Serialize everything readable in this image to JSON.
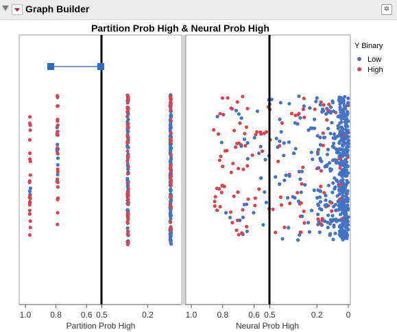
{
  "window": {
    "title": "Graph Builder"
  },
  "icons": {
    "collapse": "disclosure-triangle-icon",
    "menu": "red-triangle-menu-icon",
    "pin": "pin-icon"
  },
  "chart_data": {
    "type": "scatter",
    "title": "Partition Prob High & Neural Prob High",
    "legend": {
      "title": "Y Binary",
      "position": "right",
      "entries": [
        {
          "name": "Low",
          "color": "#4472c4"
        },
        {
          "name": "High",
          "color": "#d9434f"
        }
      ]
    },
    "panels": [
      {
        "xlabel": "Partition Prob High",
        "xlim": [
          1.0,
          0.0
        ],
        "ticks": [
          "1.0",
          "0.8",
          "0.6",
          "0.5",
          "0.2"
        ],
        "tick_values": [
          1.0,
          0.8,
          0.6,
          0.5,
          0.2
        ],
        "reference_line": 0.5,
        "threshold_marker": {
          "x": [
            0.8,
            0.5
          ]
        },
        "columns": [
          {
            "x": 0.97,
            "n_low": 3,
            "n_high": 24
          },
          {
            "x": 0.79,
            "n_low": 14,
            "n_high": 21
          },
          {
            "x": 0.33,
            "n_low": 90,
            "n_high": 45
          },
          {
            "x": 0.05,
            "n_low": 160,
            "n_high": 30
          }
        ]
      },
      {
        "xlabel": "Neural Prob High",
        "xlim": [
          1.0,
          0.0
        ],
        "ticks": [
          "1.0",
          "0.8",
          "0.6",
          "0.5",
          "0.2",
          "0"
        ],
        "tick_values": [
          1.0,
          0.8,
          0.6,
          0.5,
          0.2,
          0.0
        ],
        "reference_line": 0.5
      }
    ]
  }
}
